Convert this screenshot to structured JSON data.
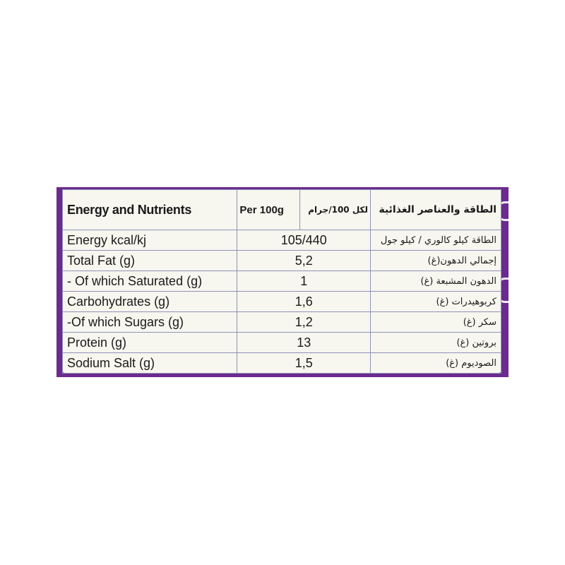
{
  "header": {
    "title_en": "Energy and Nutrients",
    "per_en": "Per 100g",
    "per_ar": "لكل 100/جرام",
    "title_ar": "الطاقة والعناصر الغذائية"
  },
  "rows": [
    {
      "en": "Energy kcal/kj",
      "value": "105/440",
      "ar": "الطاقة كيلو كالوري / كيلو جول"
    },
    {
      "en": "Total Fat (g)",
      "value": "5,2",
      "ar": "إجمالي الدهون(غ)"
    },
    {
      "en": "- Of which Saturated (g)",
      "value": "1",
      "ar": "الدهون المشبعة (غ)"
    },
    {
      "en": "Carbohydrates (g)",
      "value": "1,6",
      "ar": "كربوهيدرات (غ)"
    },
    {
      "en": "-Of which Sugars (g)",
      "value": "1,2",
      "ar": "سكر (غ)"
    },
    {
      "en": "Protein (g)",
      "value": "13",
      "ar": "بروتين (غ)"
    },
    {
      "en": "Sodium Salt (g)",
      "value": "1,5",
      "ar": "الصوديوم (غ)"
    }
  ],
  "colors": {
    "packaging_purple": "#6b2a8f",
    "label_background": "#f7f6ef",
    "grid_lines": "#8f93b5"
  }
}
